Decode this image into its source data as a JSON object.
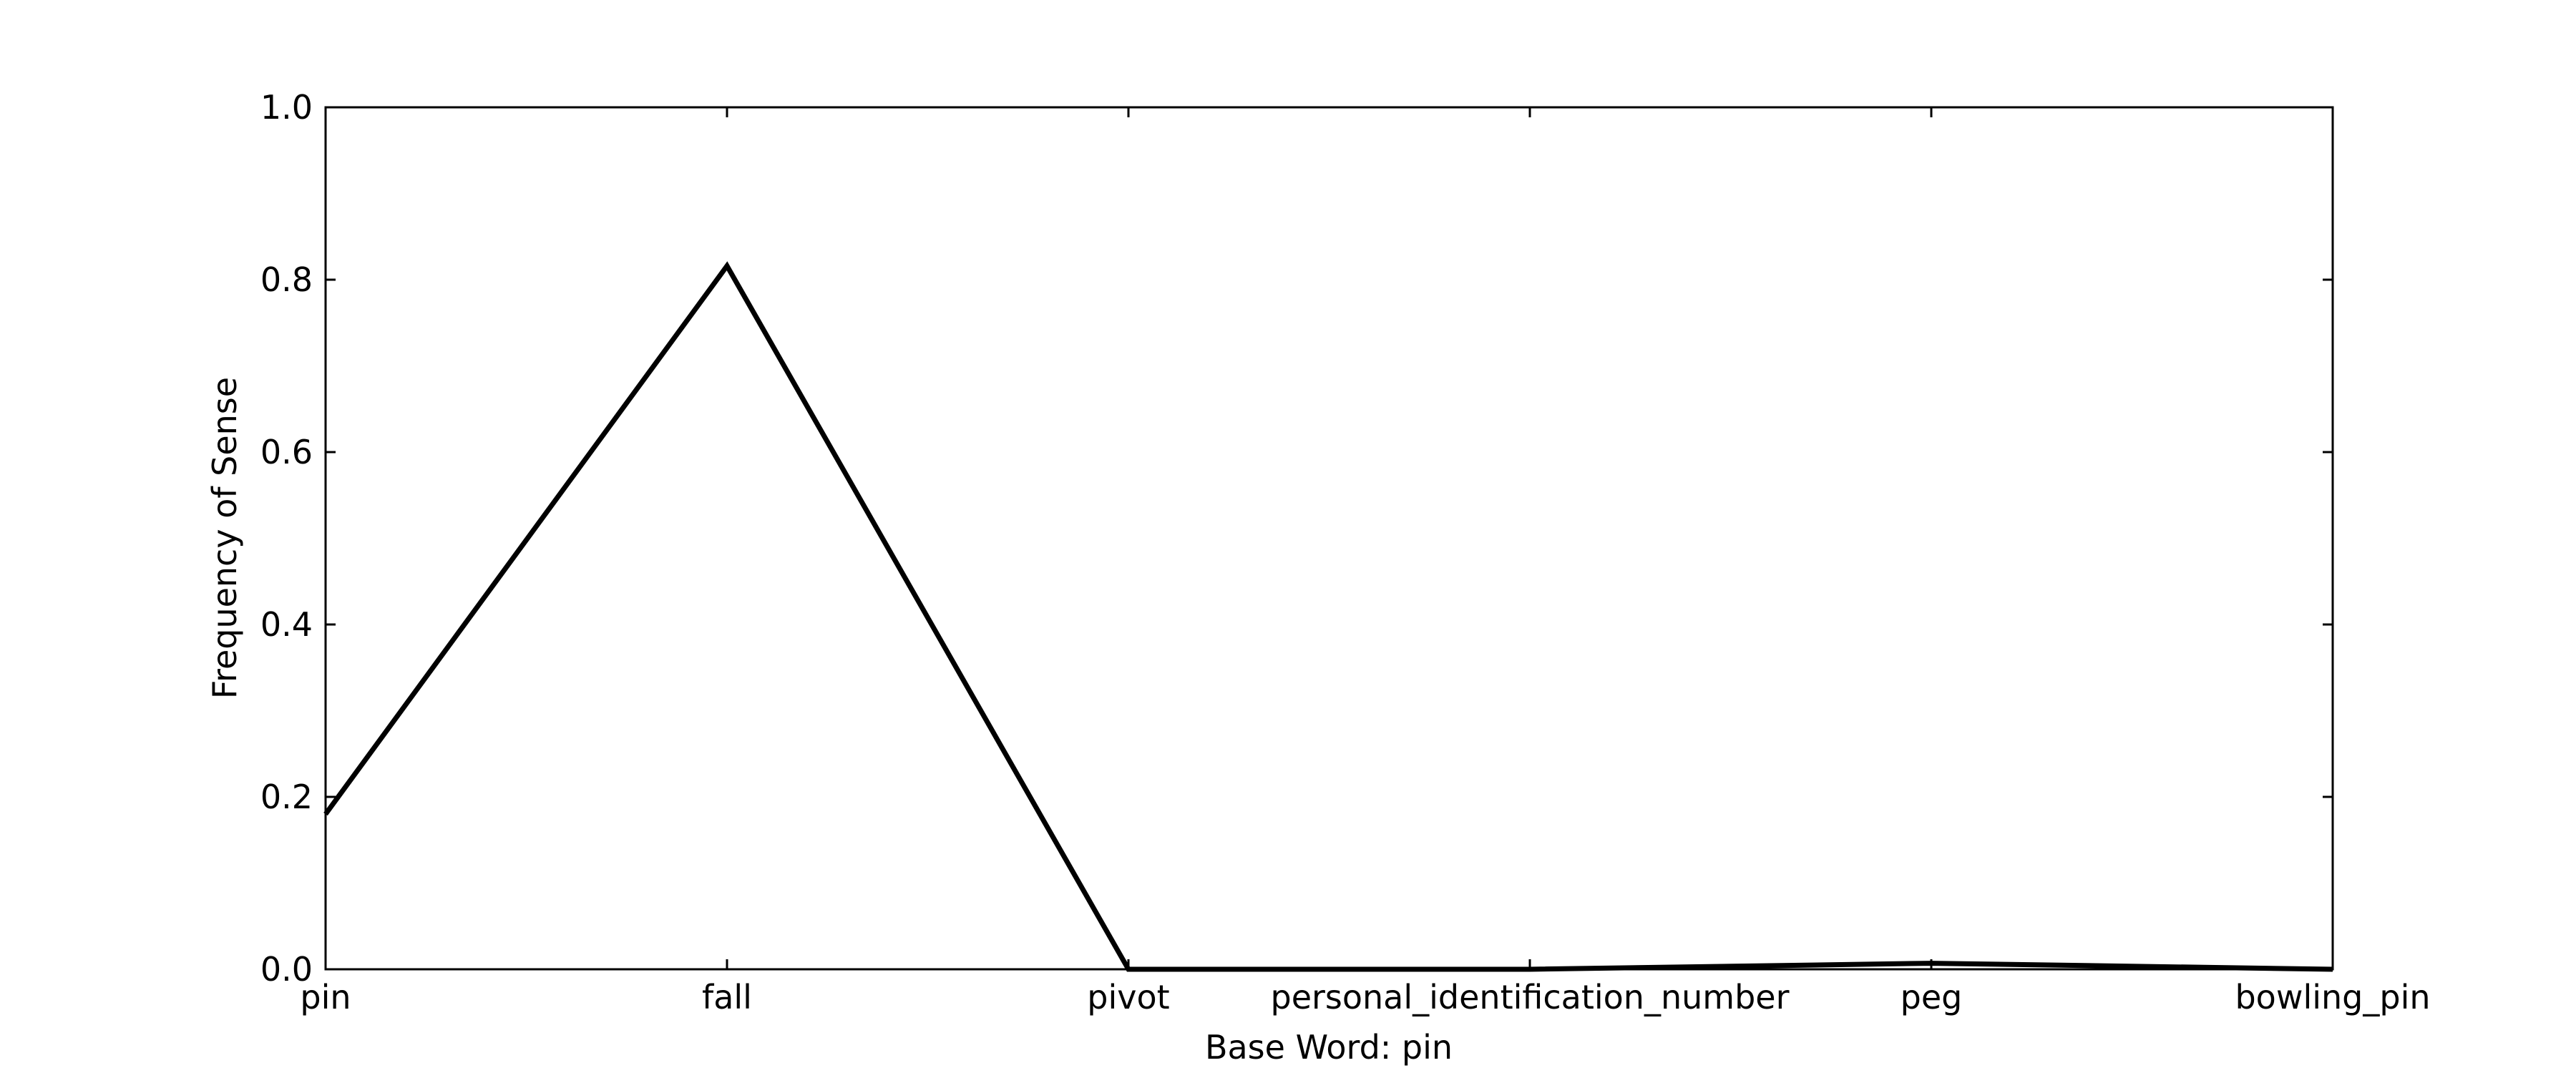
{
  "chart_data": {
    "type": "line",
    "categories": [
      "pin",
      "fall",
      "pivot",
      "personal_identification_number",
      "peg",
      "bowling_pin"
    ],
    "series": [
      {
        "values": [
          0.18,
          0.816,
          0.0,
          0.0,
          0.007,
          0.0
        ]
      }
    ],
    "xlabel": "Base Word: pin",
    "ylabel": "Frequency of Sense",
    "ylim": [
      0,
      1.0
    ],
    "yticks": [
      "0.0",
      "0.2",
      "0.4",
      "0.6",
      "0.8",
      "1.0"
    ],
    "grid": false,
    "line_color": "#000000"
  }
}
